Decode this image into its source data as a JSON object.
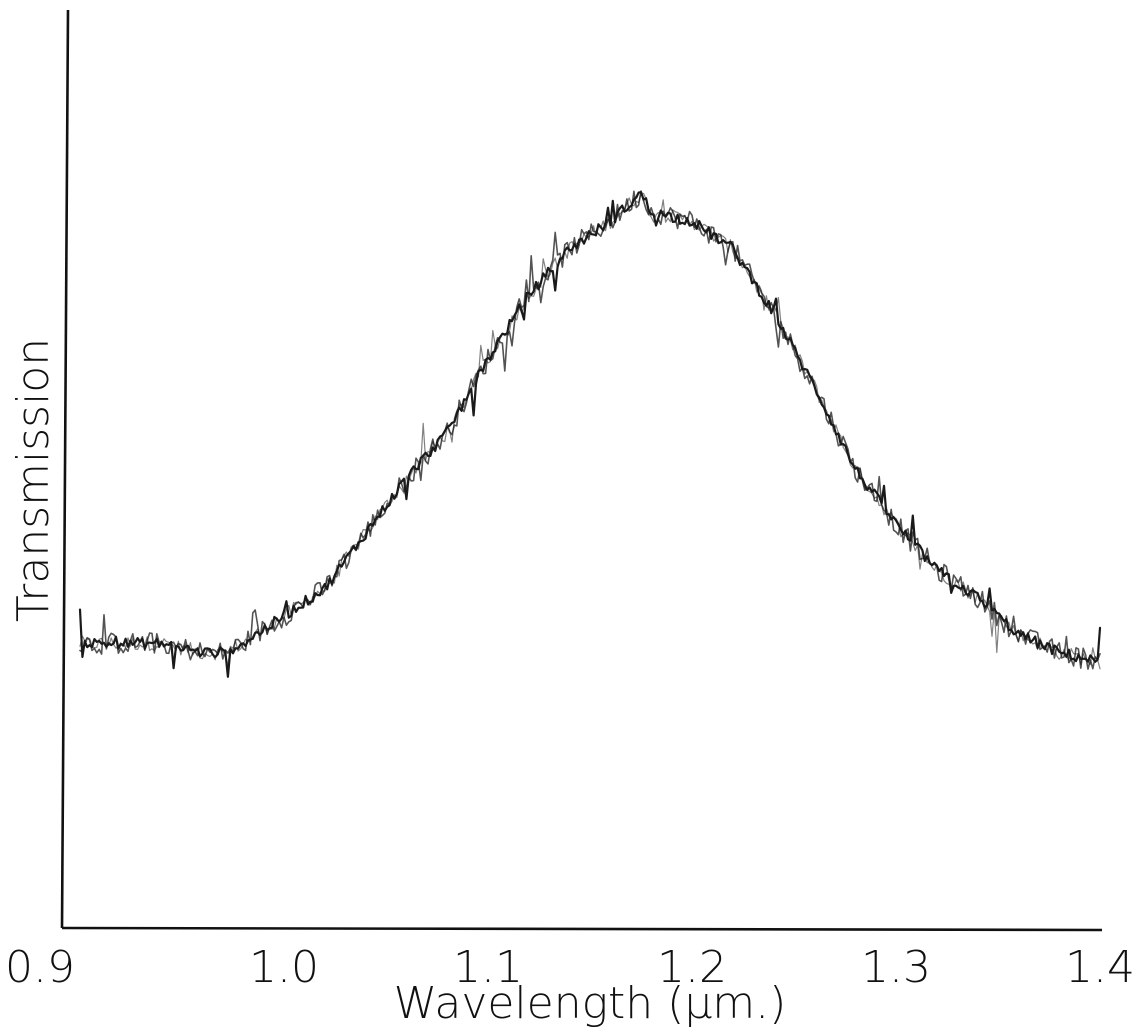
{
  "chart_data": {
    "type": "line",
    "title": "",
    "xlabel": "Wavelength (μm.)",
    "ylabel": "Transmission",
    "xlim": [
      0.9,
      1.4
    ],
    "ylim": [
      0,
      1.0
    ],
    "x_ticks": [
      0.9,
      1.0,
      1.1,
      1.2,
      1.3,
      1.4
    ],
    "x_tick_labels": [
      "0.9",
      "1.0",
      "1.1",
      "1.2",
      "1.3",
      "1.4"
    ],
    "y_ticks_shown": false,
    "grid": false,
    "legend": "none",
    "series": [
      {
        "color": "#1a1a1a",
        "x": [
          0.9,
          0.92,
          0.94,
          0.96,
          0.97,
          0.98,
          1.0,
          1.02,
          1.04,
          1.06,
          1.08,
          1.1,
          1.12,
          1.14,
          1.16,
          1.175,
          1.18,
          1.2,
          1.22,
          1.24,
          1.26,
          1.28,
          1.3,
          1.32,
          1.34,
          1.36,
          1.38,
          1.4
        ],
        "y": [
          0.31,
          0.31,
          0.31,
          0.3,
          0.3,
          0.31,
          0.34,
          0.37,
          0.43,
          0.49,
          0.54,
          0.62,
          0.69,
          0.74,
          0.77,
          0.8,
          0.78,
          0.77,
          0.74,
          0.67,
          0.59,
          0.5,
          0.44,
          0.39,
          0.36,
          0.32,
          0.3,
          0.29
        ]
      }
    ]
  }
}
